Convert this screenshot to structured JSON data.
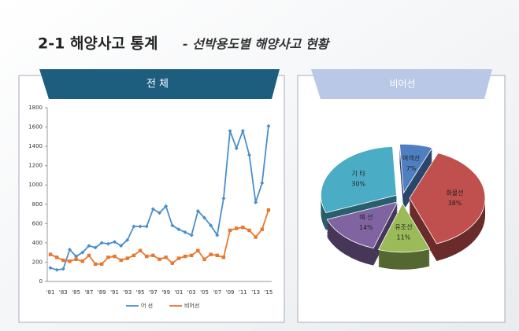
{
  "header": {
    "title": "2-1 해양사고 통계",
    "subtitle": "- 선박용도별 해양사고 현황"
  },
  "chart_data": [
    {
      "type": "line",
      "title": "전 체",
      "categories": [
        "'81",
        null,
        "'83",
        null,
        "'85",
        null,
        "'87",
        null,
        "'89",
        null,
        "'91",
        null,
        "'93",
        null,
        "'95",
        null,
        "'97",
        null,
        "'99",
        null,
        "'01",
        null,
        "'03",
        null,
        "'05",
        null,
        "'07",
        null,
        "'09",
        null,
        "'11",
        null,
        "'13",
        null,
        "'15"
      ],
      "series": [
        {
          "name": "어 선",
          "color": "#4a8fcc",
          "values": [
            140,
            120,
            130,
            330,
            260,
            300,
            370,
            350,
            400,
            390,
            410,
            370,
            430,
            570,
            570,
            570,
            750,
            710,
            780,
            580,
            540,
            510,
            480,
            730,
            660,
            580,
            480,
            860,
            1560,
            1380,
            1560,
            1310,
            820,
            1020,
            1610
          ]
        },
        {
          "name": "비어선",
          "color": "#e8772e",
          "values": [
            280,
            250,
            220,
            210,
            230,
            210,
            270,
            180,
            180,
            250,
            260,
            220,
            240,
            270,
            320,
            260,
            270,
            230,
            250,
            190,
            240,
            260,
            270,
            320,
            230,
            280,
            270,
            250,
            530,
            550,
            560,
            530,
            460,
            540,
            740
          ]
        }
      ],
      "ylim": [
        0,
        1800
      ],
      "yticks": [
        0,
        200,
        400,
        600,
        800,
        1000,
        1200,
        1400,
        1600,
        1800
      ],
      "legend": "bottom"
    },
    {
      "type": "pie",
      "title": "비어선",
      "categories": [
        "여객선",
        "화물선",
        "유조선",
        "예 선",
        "기 타"
      ],
      "values": [
        7,
        38,
        11,
        14,
        30
      ],
      "value_labels": [
        "7%",
        "38%",
        "11%",
        "14%",
        "30%"
      ],
      "colors": [
        "#4f7fc0",
        "#c0504d",
        "#9bbb59",
        "#8064a2",
        "#4bacc6"
      ]
    }
  ]
}
